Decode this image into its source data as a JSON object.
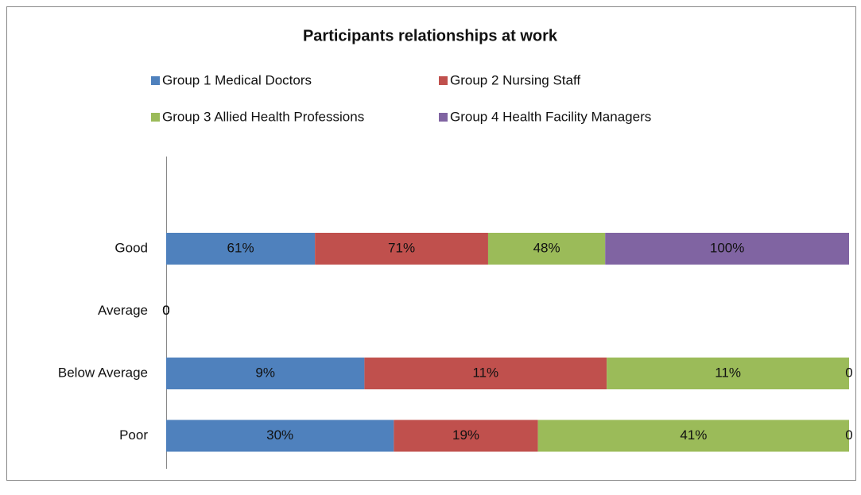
{
  "chart_data": {
    "type": "bar",
    "orientation": "horizontal",
    "stacked": "percent",
    "title": "Participants relationships at work",
    "categories": [
      "Good",
      "Average",
      "Below Average",
      "Poor"
    ],
    "series": [
      {
        "name": "Group 1 Medical Doctors",
        "color": "#4f81bd",
        "values": [
          61,
          0,
          9,
          30
        ],
        "value_labels": [
          "61%",
          "0",
          "9%",
          "30%"
        ]
      },
      {
        "name": "Group 2 Nursing Staff",
        "color": "#c0504d",
        "values": [
          71,
          0,
          11,
          19
        ],
        "value_labels": [
          "71%",
          "0",
          "11%",
          "19%"
        ]
      },
      {
        "name": "Group 3 Allied Health Professions",
        "color": "#9bbb59",
        "values": [
          48,
          0,
          11,
          41
        ],
        "value_labels": [
          "48%",
          "0",
          "11%",
          "41%"
        ]
      },
      {
        "name": "Group 4 Health Facility Managers",
        "color": "#8064a2",
        "values": [
          100,
          0,
          0,
          0
        ],
        "value_labels": [
          "100%",
          "0",
          "0",
          "0"
        ]
      }
    ],
    "legend": "top"
  }
}
